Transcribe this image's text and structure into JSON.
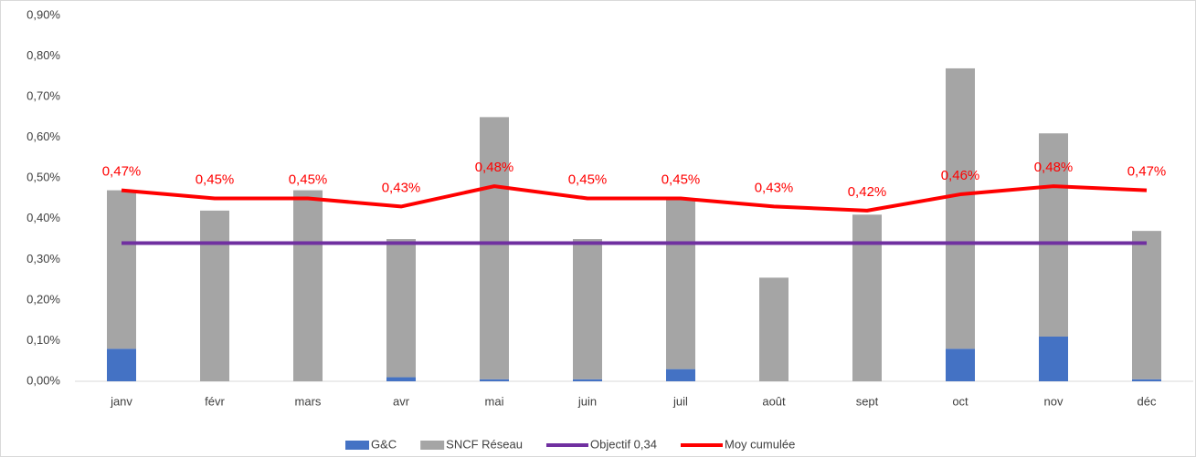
{
  "chart_data": {
    "type": "bar",
    "categories": [
      "janv",
      "févr",
      "mars",
      "avr",
      "mai",
      "juin",
      "juil",
      "août",
      "sept",
      "oct",
      "nov",
      "déc"
    ],
    "series": [
      {
        "name": "G&C",
        "color": "#4472c4",
        "type": "bar",
        "values": [
          0.08,
          0,
          0,
          0.01,
          0.005,
          0.005,
          0.03,
          0,
          0,
          0.08,
          0.11,
          0.005
        ]
      },
      {
        "name": "SNCF Réseau",
        "color": "#a5a5a5",
        "type": "bar",
        "values": [
          0.39,
          0.42,
          0.47,
          0.34,
          0.645,
          0.345,
          0.42,
          0.255,
          0.41,
          0.69,
          0.5,
          0.365
        ]
      },
      {
        "name": "Objectif 0,34",
        "color": "#7030a0",
        "type": "line",
        "values": [
          0.34,
          0.34,
          0.34,
          0.34,
          0.34,
          0.34,
          0.34,
          0.34,
          0.34,
          0.34,
          0.34,
          0.34
        ]
      },
      {
        "name": "Moy cumulée",
        "color": "#ff0000",
        "type": "line",
        "values": [
          0.47,
          0.45,
          0.45,
          0.43,
          0.48,
          0.45,
          0.45,
          0.43,
          0.42,
          0.46,
          0.48,
          0.47
        ],
        "value_labels": [
          "0,47%",
          "0,45%",
          "0,45%",
          "0,43%",
          "0,48%",
          "0,45%",
          "0,45%",
          "0,43%",
          "0,42%",
          "0,46%",
          "0,48%",
          "0,47%"
        ]
      }
    ],
    "ylim": [
      0,
      0.9
    ],
    "yticks": [
      {
        "value": 0,
        "label": "0,00%"
      },
      {
        "value": 0.1,
        "label": "0,10%"
      },
      {
        "value": 0.2,
        "label": "0,20%"
      },
      {
        "value": 0.3,
        "label": "0,30%"
      },
      {
        "value": 0.4,
        "label": "0,40%"
      },
      {
        "value": 0.5,
        "label": "0,50%"
      },
      {
        "value": 0.6,
        "label": "0,60%"
      },
      {
        "value": 0.7,
        "label": "0,70%"
      },
      {
        "value": 0.8,
        "label": "0,80%"
      },
      {
        "value": 0.9,
        "label": "0,90%"
      }
    ],
    "grid": false,
    "legend": "bottom"
  }
}
